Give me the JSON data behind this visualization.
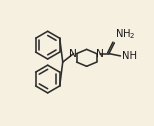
{
  "bg_color": "#f5f0e0",
  "bond_color": "#2d2d2d",
  "text_color": "#1a1a1a",
  "bond_lw": 1.15,
  "font_size": 7.2,
  "figsize": [
    1.54,
    1.26
  ],
  "dpi": 100,
  "xlim": [
    0,
    154
  ],
  "ylim": [
    0,
    126
  ]
}
